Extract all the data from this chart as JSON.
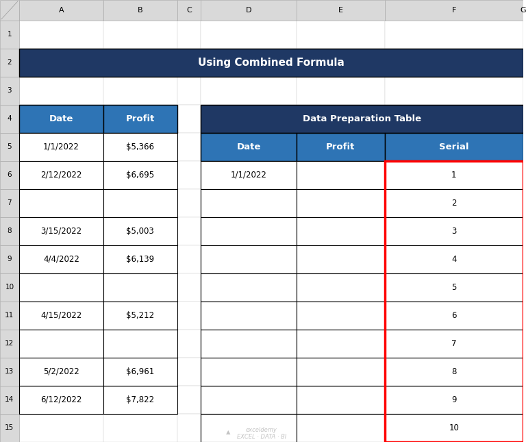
{
  "title": "Using Combined Formula",
  "title_bg": "#1F3864",
  "title_color": "#FFFFFF",
  "col_header_bg": "#2E74B5",
  "col_header_color": "#FFFFFF",
  "data_prep_header_bg": "#1F3864",
  "data_prep_header_color": "#FFFFFF",
  "grid_line_color": "#000000",
  "cell_bg": "#FFFFFF",
  "excel_header_bg": "#D9D9D9",
  "excel_header_color": "#000000",
  "red_border_color": "#FF0000",
  "watermark_color": "#AAAAAA",
  "col_letters": [
    "A",
    "B",
    "C",
    "D",
    "E",
    "F",
    "G"
  ],
  "row_numbers": [
    "1",
    "2",
    "3",
    "4",
    "5",
    "6",
    "7",
    "8",
    "9",
    "10",
    "11",
    "12",
    "13",
    "14",
    "15"
  ],
  "left_table_headers": [
    "Date",
    "Profit"
  ],
  "left_table_data": [
    [
      "1/1/2022",
      "$5,366"
    ],
    [
      "2/12/2022",
      "$6,695"
    ],
    [
      "",
      ""
    ],
    [
      "3/15/2022",
      "$5,003"
    ],
    [
      "4/4/2022",
      "$6,139"
    ],
    [
      "",
      ""
    ],
    [
      "4/15/2022",
      "$5,212"
    ],
    [
      "",
      ""
    ],
    [
      "5/2/2022",
      "$6,961"
    ],
    [
      "6/12/2022",
      "$7,822"
    ]
  ],
  "right_table_main_header": "Data Preparation Table",
  "right_table_headers": [
    "Date",
    "Profit",
    "Serial"
  ],
  "right_table_data": [
    [
      "1/1/2022",
      "",
      "1"
    ],
    [
      "",
      "",
      "2"
    ],
    [
      "",
      "",
      "3"
    ],
    [
      "",
      "",
      "4"
    ],
    [
      "",
      "",
      "5"
    ],
    [
      "",
      "",
      "6"
    ],
    [
      "",
      "",
      "7"
    ],
    [
      "",
      "",
      "8"
    ],
    [
      "",
      "",
      "9"
    ],
    [
      "",
      "",
      "10"
    ]
  ]
}
